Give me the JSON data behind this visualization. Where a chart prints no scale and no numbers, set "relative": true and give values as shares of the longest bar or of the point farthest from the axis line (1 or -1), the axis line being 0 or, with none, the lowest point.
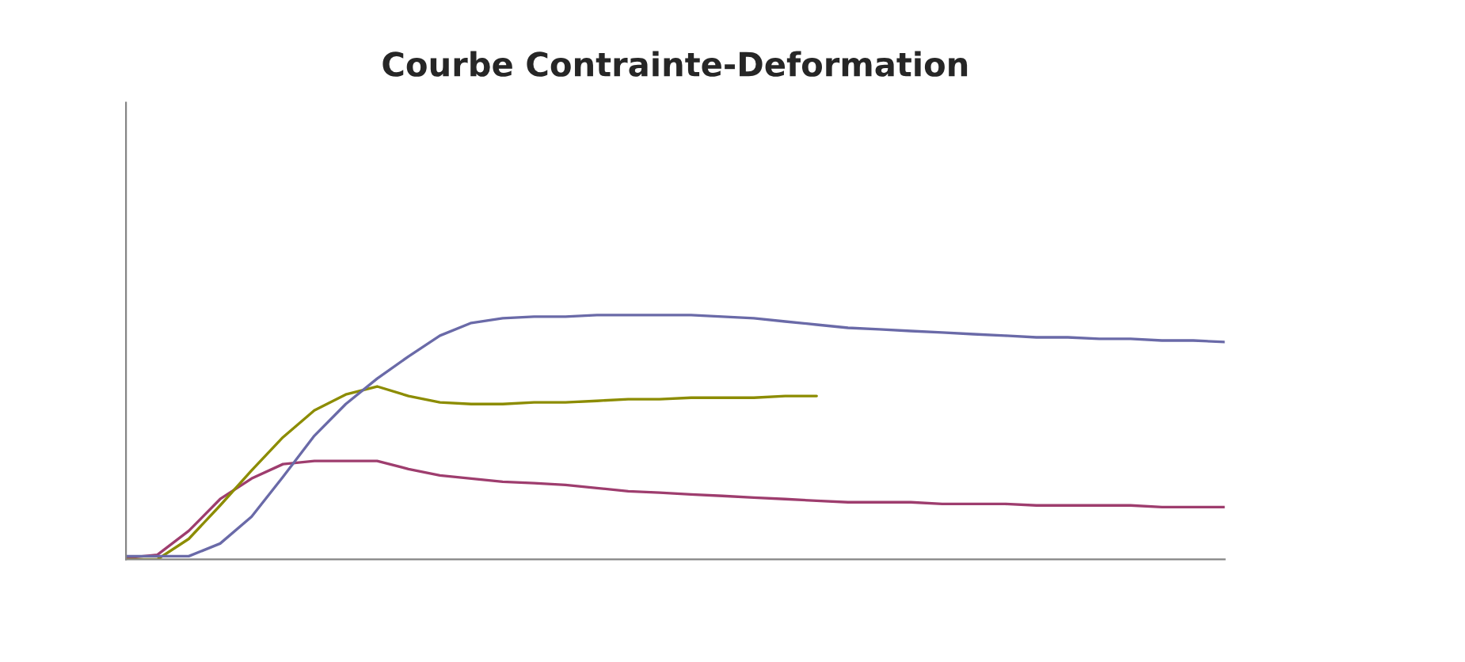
{
  "chart_data": {
    "type": "line",
    "title": "Courbe Contrainte-Deformation",
    "relative": true,
    "categories": [
      null,
      null,
      null,
      null,
      null,
      null,
      null,
      null,
      null,
      null,
      null,
      null,
      null,
      null,
      null,
      null,
      null,
      null,
      null,
      null,
      null,
      null,
      null,
      null,
      null,
      null,
      null,
      null,
      null,
      null,
      null,
      null,
      null,
      null,
      null,
      null
    ],
    "series": [
      {
        "color": "#9e3d6e",
        "values": [
          0.006,
          0.019,
          0.117,
          0.247,
          0.331,
          0.39,
          0.403,
          0.403,
          0.403,
          0.37,
          0.344,
          0.331,
          0.318,
          0.312,
          0.305,
          0.292,
          0.279,
          0.273,
          0.266,
          0.26,
          0.253,
          0.247,
          0.24,
          0.234,
          0.234,
          0.234,
          0.227,
          0.227,
          0.227,
          0.221,
          0.221,
          0.221,
          0.221,
          0.214,
          0.214,
          0.214
        ]
      },
      {
        "color": "#8c8c00",
        "values": [
          0,
          0,
          0.084,
          0.221,
          0.364,
          0.5,
          0.61,
          0.675,
          0.708,
          0.669,
          0.643,
          0.636,
          0.636,
          0.643,
          0.643,
          0.649,
          0.656,
          0.656,
          0.662,
          0.662,
          0.662,
          0.669,
          0.669,
          null,
          null,
          null,
          null,
          null,
          null,
          null,
          null,
          null,
          null,
          null,
          null,
          null
        ]
      },
      {
        "color": "#6a6aa8",
        "values": [
          0.013,
          0.013,
          0.013,
          0.065,
          0.175,
          0.338,
          0.506,
          0.636,
          0.74,
          0.831,
          0.916,
          0.968,
          0.987,
          0.994,
          0.994,
          1.0,
          1.0,
          1.0,
          1.0,
          0.994,
          0.987,
          0.974,
          0.961,
          0.948,
          0.942,
          0.935,
          0.929,
          0.922,
          0.916,
          0.909,
          0.909,
          0.903,
          0.903,
          0.896,
          0.896,
          0.89
        ]
      }
    ]
  }
}
